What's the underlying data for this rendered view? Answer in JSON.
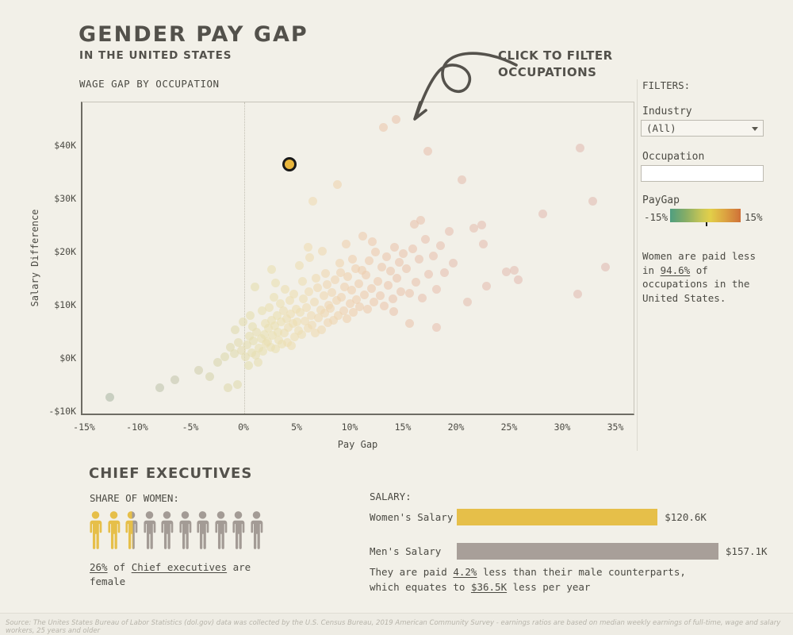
{
  "header": {
    "title": "GENDER PAY GAP",
    "subtitle": "IN THE UNITED STATES"
  },
  "chart": {
    "title": "WAGE GAP BY OCCUPATION",
    "annotation_line1": "CLICK TO FILTER",
    "annotation_line2": "OCCUPATIONS",
    "x_axis_title": "Pay Gap",
    "y_axis_title": "Salary Difference",
    "x_ticks": [
      "-15%",
      "-10%",
      "-5%",
      "0%",
      "5%",
      "10%",
      "15%",
      "20%",
      "25%",
      "30%",
      "35%"
    ],
    "y_ticks": [
      "$40K",
      "$30K",
      "$20K",
      "$10K",
      "$0K",
      "-$10K"
    ]
  },
  "chart_data": {
    "type": "scatter",
    "xlabel": "Pay Gap",
    "ylabel": "Salary Difference",
    "x_range_pct": [
      -15,
      35
    ],
    "y_range_k": [
      -10,
      45
    ],
    "grid": "single dotted vertical line at 0%",
    "color_encoding": "PayGap, green (-15%) to yellow (0%) to orange-red (15%+)",
    "color_stops": [
      [
        -15,
        "#a4b4a4"
      ],
      [
        -7,
        "#c3c6ae"
      ],
      [
        -2,
        "#dcd8ae"
      ],
      [
        2,
        "#e9e0b0"
      ],
      [
        6,
        "#eedcb2"
      ],
      [
        10,
        "#eecfae"
      ],
      [
        14,
        "#eac5ad"
      ],
      [
        20,
        "#e5bfb1"
      ],
      [
        35,
        "#e0bbb3"
      ]
    ],
    "highlighted_point": {
      "pay_gap_pct": 4.2,
      "salary_diff_k": 36.5,
      "label": "Chief executives",
      "fill": "#e9b63c",
      "ring": "#191919"
    },
    "points": [
      [
        -12.7,
        -7.3
      ],
      [
        -8,
        -5.5
      ],
      [
        -6.6,
        -3.9
      ],
      [
        -4.4,
        -2.2
      ],
      [
        -3.3,
        -3.3
      ],
      [
        -2.6,
        -0.7
      ],
      [
        -1.6,
        -5.5
      ],
      [
        -0.7,
        -4.8
      ],
      [
        -1.9,
        0.4
      ],
      [
        -1.4,
        2.2
      ],
      [
        -1,
        0.9
      ],
      [
        -0.6,
        3.1
      ],
      [
        -0.3,
        1.5
      ],
      [
        0,
        0.3
      ],
      [
        0.2,
        2.6
      ],
      [
        0.4,
        4.2
      ],
      [
        0.6,
        1.1
      ],
      [
        0.8,
        3.4
      ],
      [
        1,
        0.6
      ],
      [
        1.1,
        5
      ],
      [
        1.3,
        2
      ],
      [
        1.5,
        3.8
      ],
      [
        1.7,
        1.4
      ],
      [
        1.8,
        4.6
      ],
      [
        2,
        2.9
      ],
      [
        0.3,
        -1.2
      ],
      [
        1.2,
        -0.6
      ],
      [
        -0.9,
        5.5
      ],
      [
        0.7,
        6.1
      ],
      [
        1.9,
        6.6
      ],
      [
        2.1,
        3.2
      ],
      [
        2.2,
        5.7
      ],
      [
        2.4,
        2.1
      ],
      [
        2.5,
        7.3
      ],
      [
        2.6,
        4.4
      ],
      [
        2.8,
        6.2
      ],
      [
        2.9,
        1.8
      ],
      [
        3,
        8.1
      ],
      [
        3.1,
        5
      ],
      [
        3.2,
        3.5
      ],
      [
        3.4,
        6.9
      ],
      [
        3.5,
        2.7
      ],
      [
        3.6,
        9
      ],
      [
        3.7,
        4.8
      ],
      [
        3.9,
        7.6
      ],
      [
        4,
        3.1
      ],
      [
        4.1,
        5.9
      ],
      [
        4.3,
        8.5
      ],
      [
        4.4,
        2.4
      ],
      [
        4.5,
        6.6
      ],
      [
        4.7,
        4.1
      ],
      [
        4.8,
        9.4
      ],
      [
        4.9,
        7
      ],
      [
        2.3,
        9.6
      ],
      [
        3.3,
        10.4
      ],
      [
        4.2,
        10.9
      ],
      [
        2.7,
        11.5
      ],
      [
        4.6,
        12.2
      ],
      [
        5,
        5.3
      ],
      [
        5.2,
        8.8
      ],
      [
        5.3,
        4.6
      ],
      [
        5.5,
        11.2
      ],
      [
        5.6,
        7.1
      ],
      [
        5.8,
        9.7
      ],
      [
        5.9,
        5.8
      ],
      [
        6,
        12.6
      ],
      [
        6.2,
        8.2
      ],
      [
        6.3,
        6.4
      ],
      [
        6.5,
        10.6
      ],
      [
        6.6,
        4.9
      ],
      [
        6.8,
        13.3
      ],
      [
        6.9,
        7.7
      ],
      [
        7.1,
        9.2
      ],
      [
        7.2,
        5.5
      ],
      [
        7.4,
        11.8
      ],
      [
        7.5,
        8.6
      ],
      [
        7.7,
        13.9
      ],
      [
        7.8,
        6.8
      ],
      [
        7.9,
        10.1
      ],
      [
        5.4,
        14.5
      ],
      [
        6.7,
        15.2
      ],
      [
        7.6,
        16
      ],
      [
        8,
        9.5
      ],
      [
        8.2,
        12.4
      ],
      [
        8.3,
        7.2
      ],
      [
        8.5,
        14.8
      ],
      [
        8.6,
        10.9
      ],
      [
        8.8,
        8.1
      ],
      [
        9,
        16.2
      ],
      [
        9.1,
        11.6
      ],
      [
        9.3,
        9
      ],
      [
        9.4,
        13.5
      ],
      [
        9.6,
        7.6
      ],
      [
        9.7,
        15.4
      ],
      [
        9.9,
        10.3
      ],
      [
        10,
        12.9
      ],
      [
        10.2,
        8.7
      ],
      [
        10.4,
        17
      ],
      [
        10.5,
        11.1
      ],
      [
        10.7,
        14.1
      ],
      [
        10.8,
        9.8
      ],
      [
        11,
        16.7
      ],
      [
        8.9,
        18
      ],
      [
        10.1,
        18.8
      ],
      [
        11.2,
        12
      ],
      [
        11.4,
        15.8
      ],
      [
        11.5,
        9.4
      ],
      [
        11.7,
        18.5
      ],
      [
        11.9,
        13.2
      ],
      [
        12.1,
        10.7
      ],
      [
        12.3,
        20.1
      ],
      [
        12.5,
        14.6
      ],
      [
        12.7,
        11.9
      ],
      [
        12.9,
        17.3
      ],
      [
        13.1,
        9.9
      ],
      [
        13.3,
        19.2
      ],
      [
        13.5,
        13.8
      ],
      [
        13.7,
        16.5
      ],
      [
        13.9,
        11.2
      ],
      [
        14.1,
        21
      ],
      [
        14.3,
        15.1
      ],
      [
        14.5,
        18.1
      ],
      [
        14.7,
        12.6
      ],
      [
        14.9,
        19.8
      ],
      [
        12,
        22
      ],
      [
        14,
        8.9
      ],
      [
        15.2,
        16.9
      ],
      [
        15.5,
        12.3
      ],
      [
        15.8,
        20.6
      ],
      [
        16.1,
        14.4
      ],
      [
        16.4,
        18.7
      ],
      [
        16.7,
        11.4
      ],
      [
        17,
        22.4
      ],
      [
        17.3,
        15.9
      ],
      [
        17.7,
        19.4
      ],
      [
        18,
        13.1
      ],
      [
        18.4,
        21.3
      ],
      [
        18.8,
        16.2
      ],
      [
        19.2,
        24
      ],
      [
        19.6,
        18
      ],
      [
        15.9,
        25.3
      ],
      [
        15.5,
        6.6
      ],
      [
        20.4,
        33.6
      ],
      [
        21.5,
        24.6
      ],
      [
        22.3,
        25.2
      ],
      [
        22.4,
        21.5
      ],
      [
        24.6,
        16.4
      ],
      [
        25.3,
        16.7
      ],
      [
        25.7,
        14.8
      ],
      [
        22.7,
        13.6
      ],
      [
        33.9,
        17.2
      ],
      [
        31.5,
        39.7
      ],
      [
        32.7,
        29.7
      ],
      [
        28,
        27.3
      ],
      [
        31.3,
        12.2
      ],
      [
        20.9,
        10.6
      ],
      [
        18,
        5.9
      ],
      [
        13,
        43.5
      ],
      [
        14.2,
        45
      ],
      [
        17.2,
        39
      ],
      [
        8.7,
        32.8
      ],
      [
        6.4,
        29.7
      ],
      [
        16.5,
        26
      ],
      [
        5.9,
        21
      ],
      [
        2.5,
        16.8
      ],
      [
        0.9,
        13.5
      ],
      [
        3.8,
        13
      ],
      [
        5.1,
        17.5
      ],
      [
        6.1,
        19
      ],
      [
        7.3,
        20.2
      ],
      [
        9.5,
        21.5
      ],
      [
        11.1,
        23
      ],
      [
        2.9,
        14.2
      ],
      [
        1.6,
        9
      ],
      [
        0.5,
        8.2
      ],
      [
        -0.2,
        7
      ]
    ]
  },
  "filters": {
    "heading": "FILTERS:",
    "industry_label": "Industry",
    "industry_value": "(All)",
    "occupation_label": "Occupation",
    "occupation_value": "",
    "paygap_label": "PayGap",
    "paygap_min": "-15%",
    "paygap_max": "15%",
    "note_lines": [
      [
        {
          "t": "Women are paid less"
        }
      ],
      [
        {
          "t": "in "
        },
        {
          "t": "94.6%",
          "u": true
        },
        {
          "t": " of"
        }
      ],
      [
        {
          "t": "occupations in the"
        }
      ],
      [
        {
          "t": "United States."
        }
      ]
    ]
  },
  "detail": {
    "title": "CHIEF EXECUTIVES",
    "share_label": "SHARE OF WOMEN:",
    "share_pct": 26,
    "icons_total": 10,
    "female_color": "#e6bf49",
    "male_color": "#a39b95",
    "share_caption_lines": [
      [
        {
          "t": "26%",
          "u": true
        },
        {
          "t": " of "
        },
        {
          "t": "Chief executives",
          "u": true
        },
        {
          "t": " are"
        }
      ],
      [
        {
          "t": "female"
        }
      ]
    ],
    "salary_heading": "SALARY:",
    "bars": [
      {
        "label": "Women's Salary",
        "value_k": 120.6,
        "value_label": "$120.6K",
        "color": "#e6bf49"
      },
      {
        "label": "Men's Salary",
        "value_k": 157.1,
        "value_label": "$157.1K",
        "color": "#a89f99"
      }
    ],
    "salary_note_lines": [
      [
        {
          "t": "They are paid "
        },
        {
          "t": "4.2%",
          "u": true
        },
        {
          "t": " less than their male counterparts,"
        }
      ],
      [
        {
          "t": "which equates to "
        },
        {
          "t": "$36.5K",
          "u": true
        },
        {
          "t": " less per year"
        }
      ]
    ]
  },
  "source": "Source: The Unites States Bureau of Labor Statistics (dol.gov) data was collected by the U.S. Census Bureau, 2019 American Community Survey - earnings ratios are based on median weekly earnings of full-time, wage and salary workers, 25 years and older"
}
